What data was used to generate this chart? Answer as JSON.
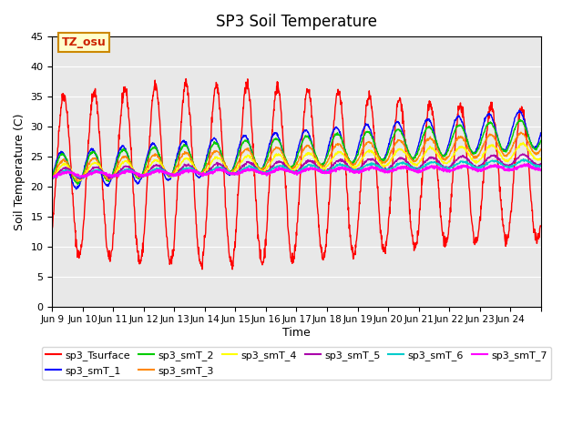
{
  "title": "SP3 Soil Temperature",
  "ylabel": "Soil Temperature (C)",
  "xlabel": "Time",
  "annotation_text": "TZ_osu",
  "annotation_color": "#cc2200",
  "annotation_bg": "#ffffcc",
  "annotation_border": "#cc8800",
  "xlim_start": 8.0,
  "xlim_end": 24.0,
  "ylim": [
    0,
    45
  ],
  "yticks": [
    0,
    5,
    10,
    15,
    20,
    25,
    30,
    35,
    40,
    45
  ],
  "xtick_labels": [
    "Jun 9",
    "Jun 10",
    "Jun 11",
    "Jun 12",
    "Jun 13",
    "Jun 14",
    "Jun 15",
    "Jun 16",
    "Jun 17",
    "Jun 18",
    "Jun 19",
    "Jun 20",
    "Jun 21",
    "Jun 22",
    "Jun 23",
    "Jun 24",
    ""
  ],
  "xtick_positions": [
    8,
    9,
    10,
    11,
    12,
    13,
    14,
    15,
    16,
    17,
    18,
    19,
    20,
    21,
    22,
    23,
    24
  ],
  "bg_color": "#e8e8e8",
  "series_colors": {
    "sp3_Tsurface": "#ff0000",
    "sp3_smT_1": "#0000ff",
    "sp3_smT_2": "#00cc00",
    "sp3_smT_3": "#ff8800",
    "sp3_smT_4": "#ffff00",
    "sp3_smT_5": "#aa00aa",
    "sp3_smT_6": "#00cccc",
    "sp3_smT_7": "#ff00ff"
  },
  "n_days": 16
}
